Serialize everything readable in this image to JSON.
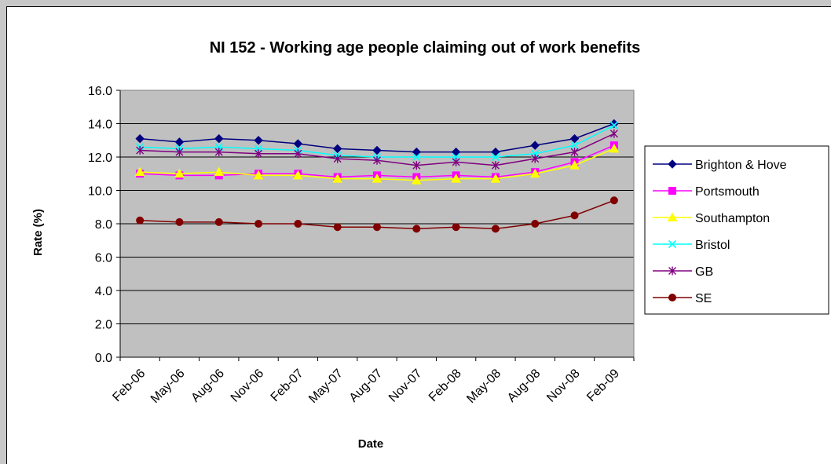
{
  "chart_data": {
    "type": "line",
    "title": "NI 152 - Working age people claiming out of work benefits",
    "xlabel": "Date",
    "ylabel": "Rate (%)",
    "ylim": [
      0,
      16
    ],
    "y_step": 2,
    "grid": true,
    "legend_position": "right",
    "categories": [
      "Feb-06",
      "May-06",
      "Aug-06",
      "Nov-06",
      "Feb-07",
      "May-07",
      "Aug-07",
      "Nov-07",
      "Feb-08",
      "May-08",
      "Aug-08",
      "Nov-08",
      "Feb-09"
    ],
    "y_tick_labels": [
      "0.0",
      "2.0",
      "4.0",
      "6.0",
      "8.0",
      "10.0",
      "12.0",
      "14.0",
      "16.0"
    ],
    "series": [
      {
        "name": "Brighton & Hove",
        "color": "#000080",
        "marker": "diamond",
        "values": [
          13.1,
          12.9,
          13.1,
          13.0,
          12.8,
          12.5,
          12.4,
          12.3,
          12.3,
          12.3,
          12.7,
          13.1,
          14.0
        ]
      },
      {
        "name": "Portsmouth",
        "color": "#ff00ff",
        "marker": "square",
        "values": [
          11.0,
          10.9,
          10.9,
          11.0,
          11.0,
          10.8,
          10.9,
          10.8,
          10.9,
          10.8,
          11.1,
          11.7,
          12.7
        ]
      },
      {
        "name": "Southampton",
        "color": "#ffff00",
        "marker": "triangle",
        "values": [
          11.1,
          11.0,
          11.1,
          10.9,
          10.9,
          10.7,
          10.7,
          10.6,
          10.7,
          10.7,
          11.0,
          11.5,
          12.5
        ]
      },
      {
        "name": "Bristol",
        "color": "#00ffff",
        "marker": "x",
        "values": [
          12.6,
          12.5,
          12.6,
          12.5,
          12.4,
          12.1,
          12.0,
          12.0,
          12.0,
          12.0,
          12.2,
          12.7,
          13.9
        ]
      },
      {
        "name": "GB",
        "color": "#800080",
        "marker": "star",
        "values": [
          12.4,
          12.3,
          12.3,
          12.2,
          12.2,
          11.9,
          11.8,
          11.5,
          11.7,
          11.5,
          11.9,
          12.3,
          13.4
        ]
      },
      {
        "name": "SE",
        "color": "#800000",
        "marker": "circle",
        "values": [
          8.2,
          8.1,
          8.1,
          8.0,
          8.0,
          7.8,
          7.8,
          7.7,
          7.8,
          7.7,
          8.0,
          8.5,
          9.4
        ]
      }
    ]
  }
}
